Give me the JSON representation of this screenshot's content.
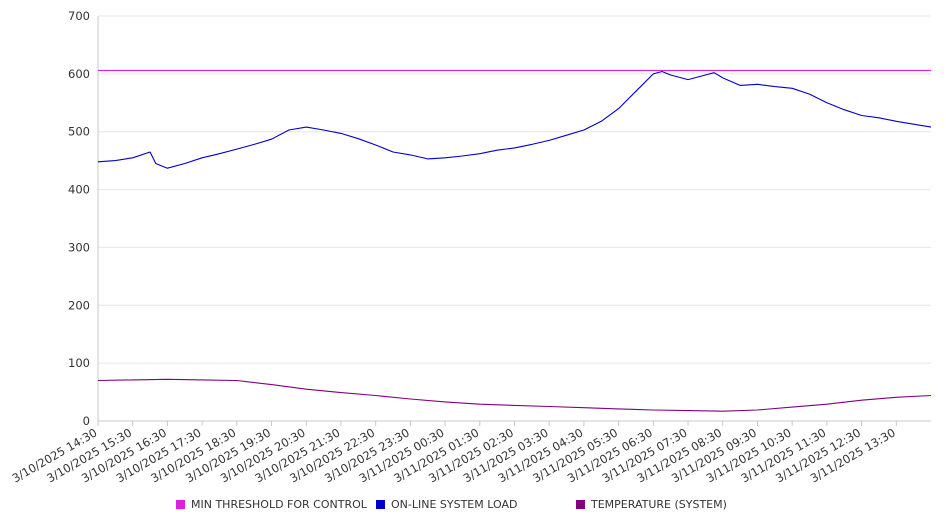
{
  "chart_data": {
    "type": "line",
    "title": "",
    "xlabel": "",
    "ylabel": "",
    "ylim": [
      0,
      700
    ],
    "yticks": [
      0,
      100,
      200,
      300,
      400,
      500,
      600,
      700
    ],
    "grid": true,
    "legend_position": "bottom",
    "x_start": "3/10/2025 14:30",
    "x_end": "3/11/2025 14:30",
    "x_tick_labels": [
      "3/10/2025 14:30",
      "3/10/2025 15:30",
      "3/10/2025 16:30",
      "3/10/2025 17:30",
      "3/10/2025 18:30",
      "3/10/2025 19:30",
      "3/10/2025 20:30",
      "3/10/2025 21:30",
      "3/10/2025 22:30",
      "3/10/2025 23:30",
      "3/11/2025 00:30",
      "3/11/2025 01:30",
      "3/11/2025 02:30",
      "3/11/2025 03:30",
      "3/11/2025 04:30",
      "3/11/2025 05:30",
      "3/11/2025 06:30",
      "3/11/2025 07:30",
      "3/11/2025 08:30",
      "3/11/2025 09:30",
      "3/11/2025 10:30",
      "3/11/2025 11:30",
      "3/11/2025 12:30",
      "3/11/2025 13:30"
    ],
    "series": [
      {
        "name": "MIN THRESHOLD FOR CONTROL",
        "color": "#e020e0",
        "x": [
          "3/10/2025 14:30",
          "3/11/2025 14:30"
        ],
        "values": [
          606,
          606
        ]
      },
      {
        "name": "ON-LINE SYSTEM LOAD",
        "color": "#0000cc",
        "x": [
          "3/10/2025 14:30",
          "3/10/2025 15:00",
          "3/10/2025 15:30",
          "3/10/2025 16:00",
          "3/10/2025 16:10",
          "3/10/2025 16:30",
          "3/10/2025 17:00",
          "3/10/2025 17:30",
          "3/10/2025 18:00",
          "3/10/2025 18:30",
          "3/10/2025 19:00",
          "3/10/2025 19:30",
          "3/10/2025 20:00",
          "3/10/2025 20:30",
          "3/10/2025 21:00",
          "3/10/2025 21:30",
          "3/10/2025 22:00",
          "3/10/2025 22:30",
          "3/10/2025 23:00",
          "3/10/2025 23:30",
          "3/11/2025 00:00",
          "3/11/2025 00:30",
          "3/11/2025 01:00",
          "3/11/2025 01:30",
          "3/11/2025 02:00",
          "3/11/2025 02:30",
          "3/11/2025 03:00",
          "3/11/2025 03:30",
          "3/11/2025 04:00",
          "3/11/2025 04:30",
          "3/11/2025 05:00",
          "3/11/2025 05:30",
          "3/11/2025 06:00",
          "3/11/2025 06:30",
          "3/11/2025 06:45",
          "3/11/2025 07:00",
          "3/11/2025 07:30",
          "3/11/2025 08:00",
          "3/11/2025 08:15",
          "3/11/2025 08:30",
          "3/11/2025 09:00",
          "3/11/2025 09:30",
          "3/11/2025 10:00",
          "3/11/2025 10:30",
          "3/11/2025 11:00",
          "3/11/2025 11:30",
          "3/11/2025 12:00",
          "3/11/2025 12:30",
          "3/11/2025 13:00",
          "3/11/2025 13:30",
          "3/11/2025 14:00",
          "3/11/2025 14:30"
        ],
        "values": [
          448,
          450,
          455,
          465,
          445,
          437,
          445,
          455,
          462,
          470,
          478,
          487,
          503,
          508,
          503,
          497,
          488,
          477,
          465,
          460,
          453,
          455,
          458,
          462,
          468,
          472,
          478,
          485,
          494,
          503,
          518,
          540,
          570,
          600,
          604,
          598,
          590,
          598,
          602,
          593,
          580,
          582,
          578,
          575,
          565,
          550,
          538,
          528,
          524,
          518,
          513,
          508
        ]
      },
      {
        "name": "TEMPERATURE (SYSTEM)",
        "color": "#800080",
        "x": [
          "3/10/2025 14:30",
          "3/10/2025 15:30",
          "3/10/2025 16:30",
          "3/10/2025 17:30",
          "3/10/2025 18:30",
          "3/10/2025 19:30",
          "3/10/2025 20:30",
          "3/10/2025 21:30",
          "3/10/2025 22:30",
          "3/10/2025 23:30",
          "3/11/2025 00:30",
          "3/11/2025 01:30",
          "3/11/2025 02:30",
          "3/11/2025 03:30",
          "3/11/2025 04:30",
          "3/11/2025 05:30",
          "3/11/2025 06:30",
          "3/11/2025 07:30",
          "3/11/2025 08:30",
          "3/11/2025 09:30",
          "3/11/2025 10:30",
          "3/11/2025 11:30",
          "3/11/2025 12:30",
          "3/11/2025 13:30",
          "3/11/2025 14:30"
        ],
        "values": [
          70,
          71,
          72,
          71,
          70,
          63,
          55,
          49,
          44,
          38,
          33,
          29,
          27,
          25,
          23,
          21,
          19,
          18,
          17,
          19,
          24,
          29,
          36,
          41,
          44
        ]
      }
    ]
  }
}
